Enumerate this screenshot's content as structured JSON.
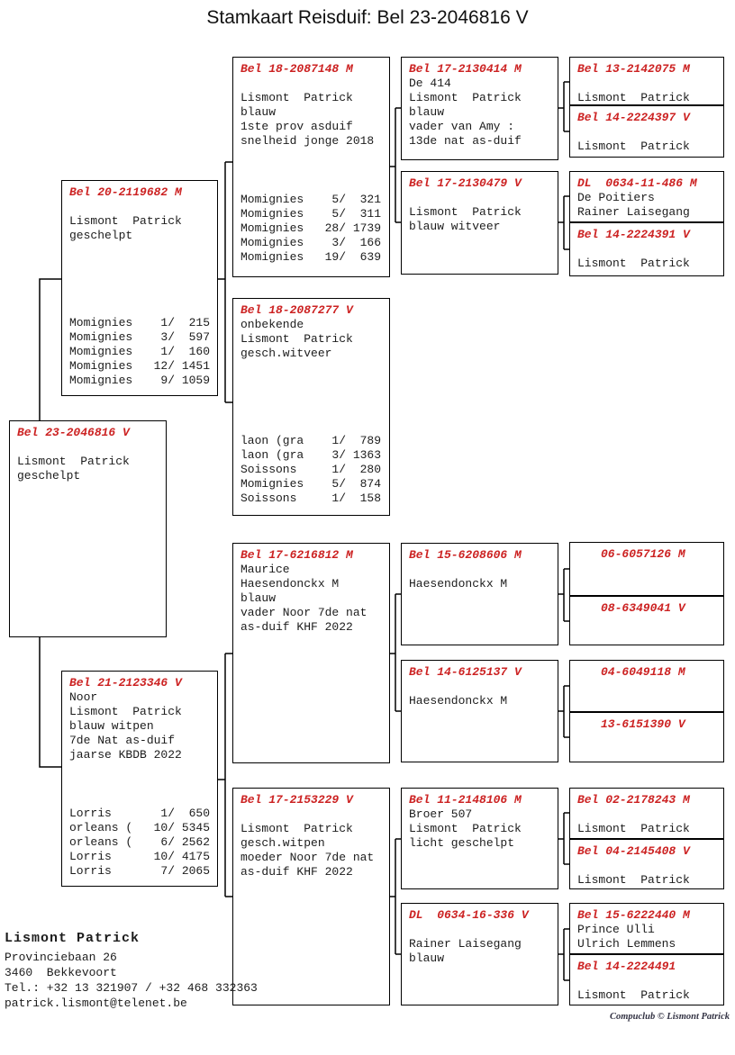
{
  "title": "Stamkaart Reisduif: Bel 23-2046816 V",
  "colors": {
    "accent_red": "#cc2222",
    "text": "#1c1c1c"
  },
  "boxes": {
    "subject": {
      "ring": "Bel 23-2046816 V",
      "lines": [
        "",
        "Lismont  Patrick",
        "geschelpt"
      ],
      "results": []
    },
    "father": {
      "ring": "Bel 20-2119682 M",
      "lines": [
        "",
        "Lismont  Patrick",
        "geschelpt"
      ],
      "results": [
        "Momignies    1/  215",
        "Momignies    3/  597",
        "Momignies    1/  160",
        "Momignies   12/ 1451",
        "Momignies    9/ 1059"
      ]
    },
    "mother": {
      "ring": "Bel 21-2123346 V",
      "lines": [
        "Noor",
        "Lismont  Patrick",
        "blauw witpen",
        "7de Nat as-duif",
        "jaarse KBDB 2022"
      ],
      "results": [
        "Lorris       1/  650",
        "orleans (   10/ 5345",
        "orleans (    6/ 2562",
        "Lorris      10/ 4175",
        "Lorris       7/ 2065"
      ]
    },
    "gp1": {
      "ring": "Bel 18-2087148 M",
      "lines": [
        "",
        "Lismont  Patrick",
        "blauw",
        "1ste prov asduif",
        "snelheid jonge 2018"
      ],
      "results": [
        "Momignies    5/  321",
        "Momignies    5/  311",
        "Momignies   28/ 1739",
        "Momignies    3/  166",
        "Momignies   19/  639"
      ]
    },
    "gp2": {
      "ring": "Bel 18-2087277 V",
      "lines": [
        "onbekende",
        "Lismont  Patrick",
        "gesch.witveer"
      ],
      "results": [
        "laon (gra    1/  789",
        "laon (gra    3/ 1363",
        "Soissons     1/  280",
        "Momignies    5/  874",
        "Soissons     1/  158"
      ]
    },
    "gp3": {
      "ring": "Bel 17-6216812 M",
      "lines": [
        "Maurice",
        "Haesendonckx M",
        "blauw",
        "vader Noor 7de nat",
        "as-duif KHF 2022"
      ],
      "results": []
    },
    "gp4": {
      "ring": "Bel 17-2153229 V",
      "lines": [
        "",
        "Lismont  Patrick",
        "gesch.witpen",
        "moeder Noor 7de nat",
        "as-duif KHF 2022"
      ],
      "results": []
    },
    "ggp1": {
      "ring": "Bel 17-2130414 M",
      "lines": [
        "De 414",
        "Lismont  Patrick",
        "blauw",
        "vader van Amy :",
        "13de nat as-duif"
      ]
    },
    "ggp2": {
      "ring": "Bel 17-2130479 V",
      "lines": [
        "",
        "Lismont  Patrick",
        "blauw witveer"
      ]
    },
    "ggp3": {
      "ring": "Bel 15-6208606 M",
      "lines": [
        "",
        "Haesendonckx M"
      ]
    },
    "ggp4": {
      "ring": "Bel 14-6125137 V",
      "lines": [
        "",
        "Haesendonckx M"
      ]
    },
    "ggp5": {
      "ring": "Bel 11-2148106 M",
      "lines": [
        "Broer 507",
        "Lismont  Patrick",
        "licht geschelpt"
      ]
    },
    "ggp6": {
      "ring": "DL  0634-16-336 V",
      "lines": [
        "",
        "Rainer Laisegang",
        "blauw"
      ]
    },
    "g5p1a": {
      "ring": "Bel 13-2142075 M",
      "lines": [
        "",
        "Lismont  Patrick"
      ]
    },
    "g5p1b": {
      "ring": "Bel 14-2224397 V",
      "lines": [
        "",
        "Lismont  Patrick"
      ]
    },
    "g5p2a": {
      "ring": "DL  0634-11-486 M",
      "lines": [
        "De Poitiers",
        "Rainer Laisegang"
      ]
    },
    "g5p2b": {
      "ring": "Bel 14-2224391 V",
      "lines": [
        "",
        "Lismont  Patrick"
      ]
    },
    "g5p3a": {
      "ring": "06-6057126 M",
      "lines": []
    },
    "g5p3b": {
      "ring": "08-6349041 V",
      "lines": []
    },
    "g5p4a": {
      "ring": "04-6049118 M",
      "lines": []
    },
    "g5p4b": {
      "ring": "13-6151390 V",
      "lines": []
    },
    "g5p5a": {
      "ring": "Bel 02-2178243 M",
      "lines": [
        "",
        "Lismont  Patrick"
      ]
    },
    "g5p5b": {
      "ring": "Bel 04-2145408 V",
      "lines": [
        "",
        "Lismont  Patrick"
      ]
    },
    "g5p6a": {
      "ring": "Bel 15-6222440 M",
      "lines": [
        "Prince Ulli",
        "Ulrich Lemmens"
      ]
    },
    "g5p6b": {
      "ring": "Bel 14-2224491",
      "lines": [
        "",
        "Lismont  Patrick"
      ]
    }
  },
  "footer": {
    "name": "Lismont Patrick",
    "address1": "Provinciebaan 26",
    "address2": "3460  Bekkevoort",
    "phone": "Tel.: +32 13 321907 / +32 468 332363",
    "email": "patrick.lismont@telenet.be"
  },
  "credit": "Compuclub © Lismont Patrick"
}
